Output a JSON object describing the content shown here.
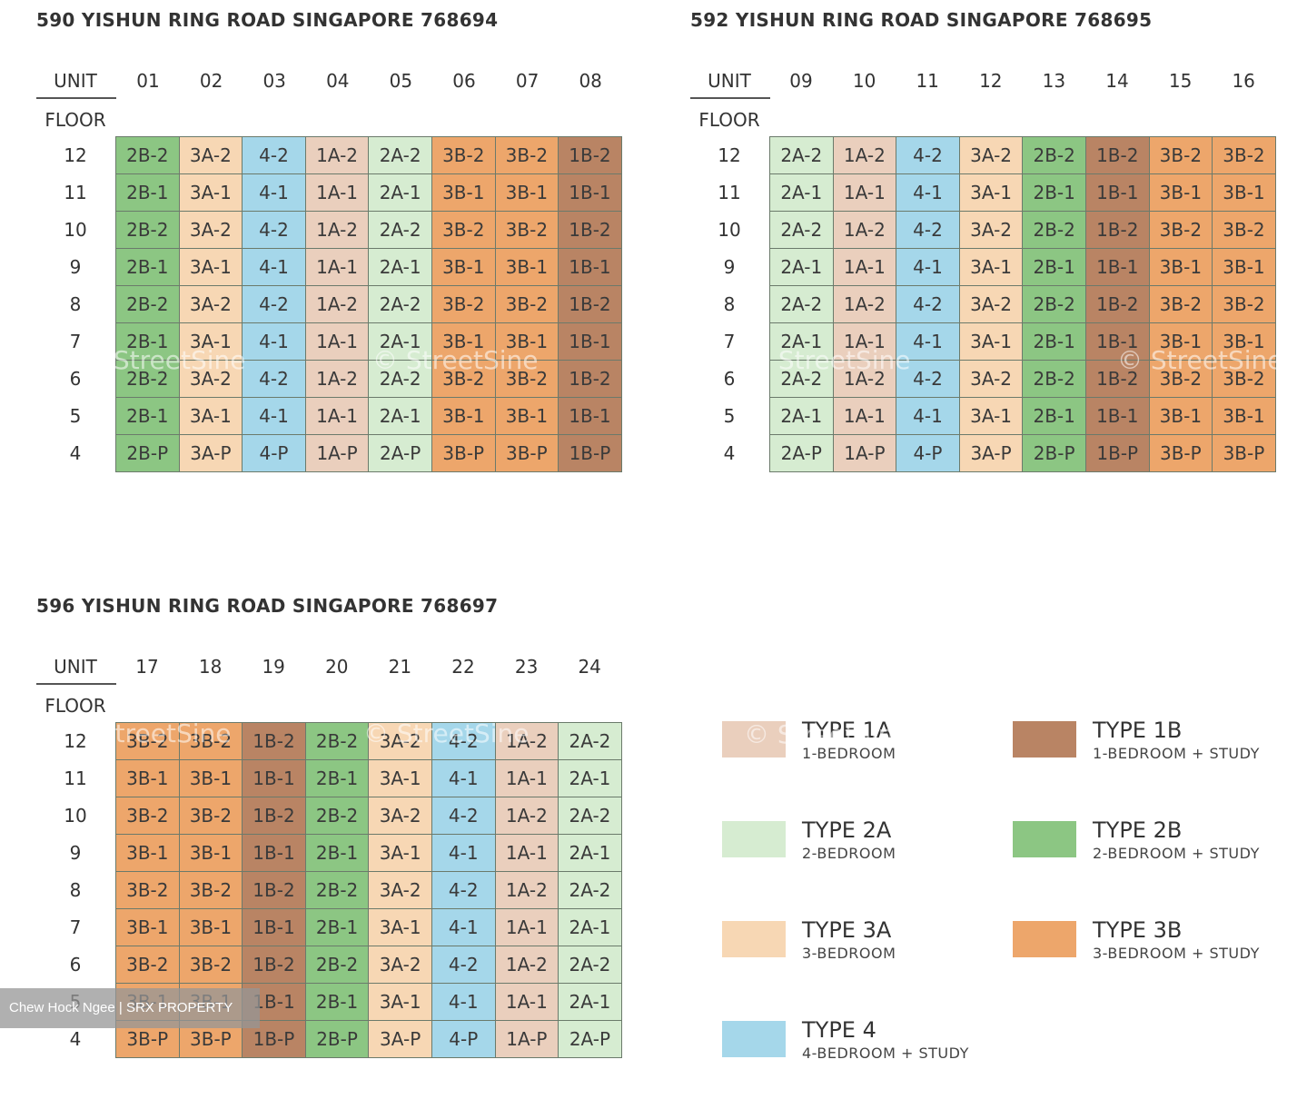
{
  "labels": {
    "unit": "UNIT",
    "floor": "FLOOR"
  },
  "floors": [
    "12",
    "11",
    "10",
    "9",
    "8",
    "7",
    "6",
    "5",
    "4"
  ],
  "blocks": [
    {
      "title": "590 YISHUN RING ROAD SINGAPORE 768694",
      "units": [
        "01",
        "02",
        "03",
        "04",
        "05",
        "06",
        "07",
        "08"
      ],
      "types": [
        "2B",
        "3A",
        "4",
        "1A",
        "2A",
        "3B",
        "3B",
        "1B"
      ]
    },
    {
      "title": "592 YISHUN RING ROAD SINGAPORE 768695",
      "units": [
        "09",
        "10",
        "11",
        "12",
        "13",
        "14",
        "15",
        "16"
      ],
      "types": [
        "2A",
        "1A",
        "4",
        "3A",
        "2B",
        "1B",
        "3B",
        "3B"
      ]
    },
    {
      "title": "596 YISHUN RING ROAD SINGAPORE 768697",
      "units": [
        "17",
        "18",
        "19",
        "20",
        "21",
        "22",
        "23",
        "24"
      ],
      "types": [
        "3B",
        "3B",
        "1B",
        "2B",
        "3A",
        "4",
        "1A",
        "2A"
      ]
    }
  ],
  "legend": [
    {
      "code": "1A",
      "name": "TYPE 1A",
      "desc": "1-BEDROOM",
      "color": "#eacfbd"
    },
    {
      "code": "1B",
      "name": "TYPE 1B",
      "desc": "1-BEDROOM + STUDY",
      "color": "#b98464"
    },
    {
      "code": "2A",
      "name": "TYPE 2A",
      "desc": "2-BEDROOM",
      "color": "#d6ecd1"
    },
    {
      "code": "2B",
      "name": "TYPE 2B",
      "desc": "2-BEDROOM + STUDY",
      "color": "#8cc683"
    },
    {
      "code": "3A",
      "name": "TYPE 3A",
      "desc": "3-BEDROOM",
      "color": "#f7d7b4"
    },
    {
      "code": "3B",
      "name": "TYPE 3B",
      "desc": "3-BEDROOM + STUDY",
      "color": "#eda66b"
    },
    {
      "code": "4",
      "name": "TYPE 4",
      "desc": "4-BEDROOM + STUDY",
      "color": "#a5d7ea"
    }
  ],
  "watermark": "© StreetSine",
  "credit": "Chew Hock Ngee | SRX PROPERTY"
}
